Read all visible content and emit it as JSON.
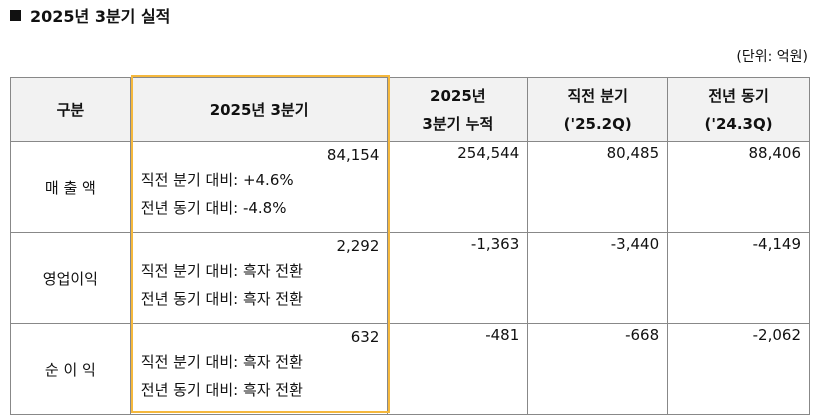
{
  "title": "2025년 3분기 실적",
  "unit": "(단위: 억원)",
  "table": {
    "header": [
      [
        "구분"
      ],
      [
        "2025년 3분기"
      ],
      [
        "2025년",
        "3분기 누적"
      ],
      [
        "직전 분기",
        "('25.2Q)"
      ],
      [
        "전년 동기",
        "('24.3Q)"
      ]
    ],
    "rows": [
      {
        "label": "매 출 액",
        "current": {
          "value": "84,154",
          "notes": [
            "직전 분기 대비: +4.6%",
            "전년 동기 대비: -4.8%"
          ]
        },
        "values": [
          "254,544",
          "80,485",
          "88,406"
        ]
      },
      {
        "label": "영업이익",
        "current": {
          "value": "2,292",
          "notes": [
            "직전 분기 대비: 흑자 전환",
            "전년 동기 대비: 흑자 전환"
          ]
        },
        "values": [
          "-1,363",
          "-3,440",
          "-4,149"
        ]
      },
      {
        "label": "순 이 익",
        "current": {
          "value": "632",
          "notes": [
            "직전 분기 대비: 흑자 전환",
            "전년 동기 대비: 흑자 전환"
          ]
        },
        "values": [
          "-481",
          "-668",
          "-2,062"
        ]
      }
    ]
  }
}
